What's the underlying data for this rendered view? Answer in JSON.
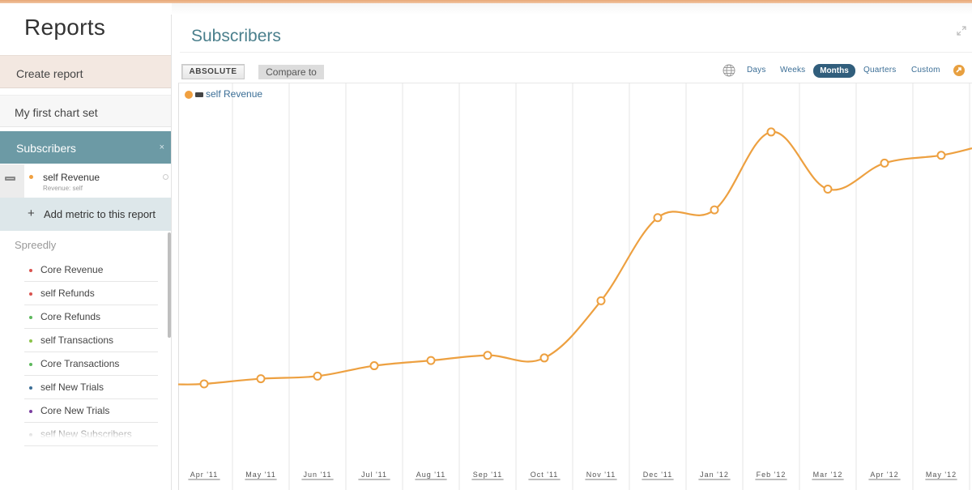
{
  "sidebar": {
    "title": "Reports",
    "create_report": "Create report",
    "chart_set": "My first chart set",
    "active_report": "Subscribers",
    "active_report_close": "×",
    "metric": {
      "name": "self Revenue",
      "sub": "Revenue: self"
    },
    "add_metric_plus": "+",
    "add_metric": "Add metric to this report",
    "group": "Spreedly",
    "metrics": [
      {
        "label": "Core Revenue",
        "color": "#d9534f"
      },
      {
        "label": "self Refunds",
        "color": "#d9534f"
      },
      {
        "label": "Core Refunds",
        "color": "#5cb85c"
      },
      {
        "label": "self Transactions",
        "color": "#8bc34a"
      },
      {
        "label": "Core Transactions",
        "color": "#5cb85c"
      },
      {
        "label": "self New Trials",
        "color": "#3b6e96"
      },
      {
        "label": "Core New Trials",
        "color": "#7b3fa0"
      },
      {
        "label": "self New Subscribers",
        "color": "#999999"
      }
    ]
  },
  "main": {
    "title": "Subscribers",
    "absolute_button": "ABSOLUTE",
    "compare_button": "Compare to",
    "periods": {
      "days": "Days",
      "weeks": "Weeks",
      "months": "Months",
      "quarters": "Quarters",
      "custom": "Custom"
    }
  },
  "chart_data": {
    "type": "line",
    "legend": "self Revenue",
    "series_color": "#eda040",
    "categories": [
      "Apr '11",
      "May '11",
      "Jun '11",
      "Jul '11",
      "Aug '11",
      "Sep '11",
      "Oct '11",
      "Nov '11",
      "Dec '11",
      "Jan '12",
      "Feb '12",
      "Mar '12",
      "Apr '12",
      "May '12"
    ],
    "values": [
      29,
      31,
      32,
      36,
      38,
      40,
      39,
      61,
      93,
      96,
      126,
      104,
      114,
      117
    ],
    "ylim": [
      0,
      145
    ],
    "grid": "vertical"
  }
}
